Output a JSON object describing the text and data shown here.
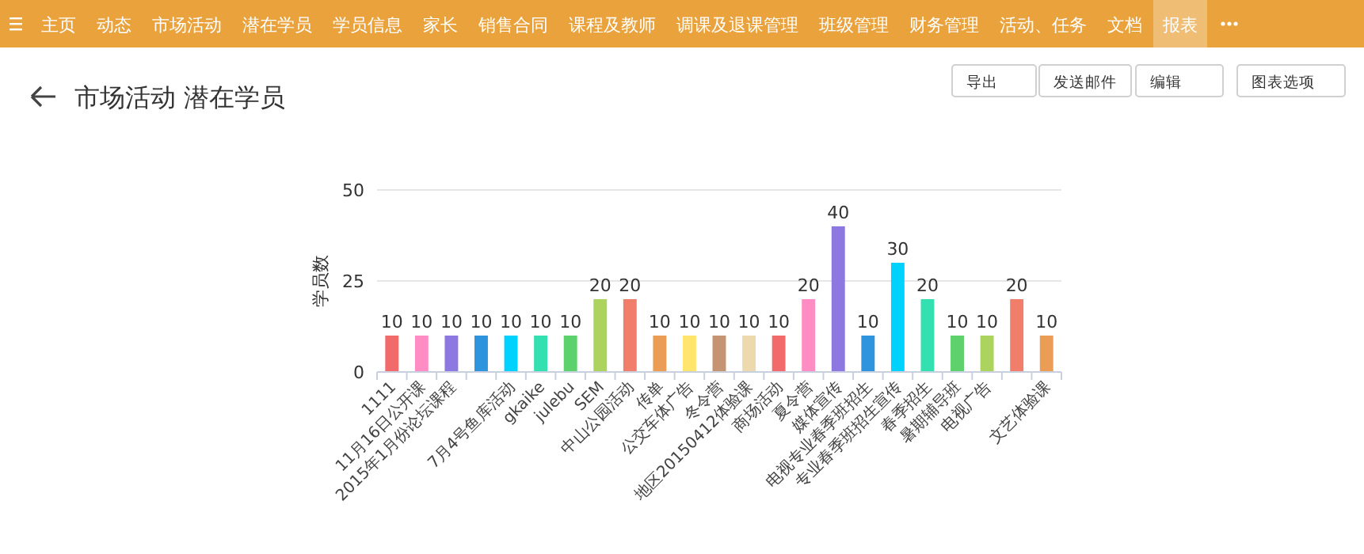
{
  "chart_data": {
    "type": "bar",
    "title": "市场活动 潜在学员",
    "ylabel": "学员数",
    "categories": [
      "1111",
      "11月16日公开课",
      "2015年1月份论坛课程",
      null,
      "7月4号鱼库活动",
      "gkaike",
      "julebu",
      "SEM",
      "中山公园活动",
      "传单",
      "公交车体广告",
      "冬令营",
      "地区20150412体验课",
      "商场活动",
      "夏令营",
      "媒体宣传",
      "电视专业春季班招生",
      "专业春季班招生宣传",
      "春季招生",
      "暑期辅导班",
      "电视广告",
      null,
      "文艺体验课"
    ],
    "values": [
      10,
      10,
      10,
      10,
      10,
      10,
      10,
      20,
      20,
      10,
      10,
      10,
      10,
      10,
      20,
      40,
      10,
      30,
      20,
      10,
      10,
      20,
      10
    ],
    "colors": [
      "#f26b6b",
      "#ff8cc2",
      "#8c78e0",
      "#2e94de",
      "#00d2ff",
      "#33e0b0",
      "#5dd16c",
      "#acd35e",
      "#f07e6a",
      "#eb9d56",
      "#ffe46e",
      "#c49473",
      "#ecd9ae",
      "#f26b6b",
      "#ff8cc2",
      "#8c78e0",
      "#2e94de",
      "#00d2ff",
      "#33e0b0",
      "#5dd16c",
      "#acd35e",
      "#f07e6a",
      "#eb9d56"
    ],
    "ylim": [
      0,
      50
    ],
    "yticks": [
      0,
      25,
      50
    ],
    "grid": "y",
    "data_labels": true,
    "annotations": [
      "主页",
      "动态",
      "市场活动",
      "潜在学员",
      "学员信息",
      "家长",
      "销售合同",
      "课程及教师",
      "调课及退课管理",
      "班级管理",
      "财务管理",
      "活动、任务",
      "文档",
      "报表",
      "导出",
      "发送邮件",
      "编辑",
      "图表选项"
    ]
  }
}
